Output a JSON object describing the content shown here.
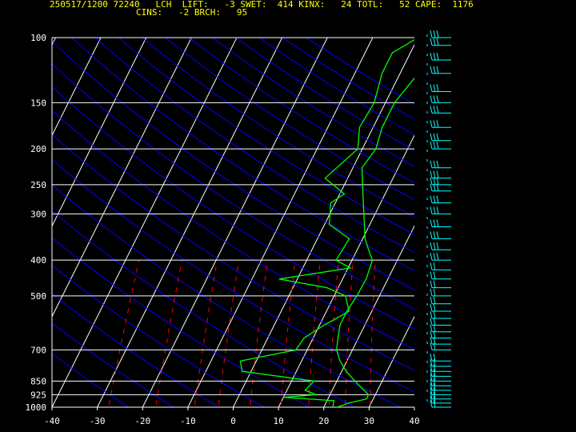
{
  "header": {
    "line1": "250517/1200 72240   LCH  LIFT:   -3 SWET:  414 KINX:   24 TOTL:   52 CAPE:  1176",
    "line2": "CINS:   -2 BRCH:   95"
  },
  "colors": {
    "background": "#000000",
    "isobar": "#ffffff",
    "isotherm": "#ffffff",
    "dry_adiabat": "#0000ff",
    "mixing_ratio": "#ff0000",
    "profile": "#00ff00",
    "wind_barb": "#00ffff",
    "header_text": "#ffff00"
  },
  "chart_data": {
    "type": "skew-t log-p sounding",
    "station": "72240",
    "pressure_levels": [
      100,
      150,
      200,
      250,
      300,
      400,
      500,
      700,
      850,
      925,
      1000
    ],
    "pressure_labels": [
      "100",
      "150",
      "200",
      "250",
      "300",
      "400",
      "500",
      "700",
      "850",
      "925",
      "1000"
    ],
    "temperature_ticks": [
      -40,
      -30,
      -20,
      -10,
      0,
      10,
      20,
      30,
      40
    ],
    "temperature_labels": [
      "-40",
      "-30",
      "-20",
      "-10",
      "0",
      "10",
      "20",
      "30",
      "40"
    ],
    "xlim": [
      -40,
      40
    ],
    "ylim": [
      1000,
      100
    ],
    "temperature_profile": [
      {
        "p": 1000,
        "t": 23.0
      },
      {
        "p": 975,
        "t": 25.0
      },
      {
        "p": 950,
        "t": 28.5
      },
      {
        "p": 925,
        "t": 28.5
      },
      {
        "p": 900,
        "t": 27.0
      },
      {
        "p": 850,
        "t": 24.0
      },
      {
        "p": 800,
        "t": 21.0
      },
      {
        "p": 750,
        "t": 18.5
      },
      {
        "p": 700,
        "t": 16.5
      },
      {
        "p": 650,
        "t": 15.5
      },
      {
        "p": 600,
        "t": 14.5
      },
      {
        "p": 550,
        "t": 14.5
      },
      {
        "p": 500,
        "t": 15.0
      },
      {
        "p": 450,
        "t": 15.2
      },
      {
        "p": 400,
        "t": 14.5
      },
      {
        "p": 375,
        "t": 12.5
      },
      {
        "p": 350,
        "t": 10.5
      },
      {
        "p": 300,
        "t": 7.5
      },
      {
        "p": 250,
        "t": 4.0
      },
      {
        "p": 225,
        "t": 2.0
      },
      {
        "p": 200,
        "t": 3.0
      },
      {
        "p": 175,
        "t": 2.0
      },
      {
        "p": 150,
        "t": 2.0
      },
      {
        "p": 125,
        "t": 4.0
      },
      {
        "p": 110,
        "t": 6.0
      },
      {
        "p": 100,
        "t": 8.5
      }
    ],
    "dewpoint_profile": [
      {
        "p": 1000,
        "t": 22.0
      },
      {
        "p": 960,
        "t": 21.5
      },
      {
        "p": 940,
        "t": 10.0
      },
      {
        "p": 925,
        "t": 17.0
      },
      {
        "p": 900,
        "t": 14.0
      },
      {
        "p": 850,
        "t": 15.0
      },
      {
        "p": 800,
        "t": -2.0
      },
      {
        "p": 750,
        "t": -3.5
      },
      {
        "p": 700,
        "t": 7.5
      },
      {
        "p": 650,
        "t": 8.0
      },
      {
        "p": 600,
        "t": 11.0
      },
      {
        "p": 550,
        "t": 15.0
      },
      {
        "p": 500,
        "t": 12.5
      },
      {
        "p": 475,
        "t": 7.5
      },
      {
        "p": 450,
        "t": -4.0
      },
      {
        "p": 420,
        "t": 10.5
      },
      {
        "p": 400,
        "t": 6.5
      },
      {
        "p": 350,
        "t": 7.0
      },
      {
        "p": 320,
        "t": 1.0
      },
      {
        "p": 280,
        "t": -1.0
      },
      {
        "p": 265,
        "t": 1.0
      },
      {
        "p": 240,
        "t": -5.0
      },
      {
        "p": 200,
        "t": -1.0
      },
      {
        "p": 175,
        "t": -3.0
      },
      {
        "p": 150,
        "t": -2.5
      },
      {
        "p": 125,
        "t": -4.0
      },
      {
        "p": 110,
        "t": -4.0
      },
      {
        "p": 100,
        "t": 0.0
      }
    ],
    "wind_barb_levels": [
      1000,
      975,
      950,
      925,
      900,
      875,
      850,
      825,
      800,
      775,
      750,
      700,
      675,
      650,
      625,
      600,
      575,
      550,
      525,
      500,
      475,
      450,
      425,
      400,
      375,
      350,
      325,
      300,
      280,
      260,
      250,
      240,
      225,
      200,
      190,
      175,
      160,
      150,
      140,
      125,
      115,
      105,
      100
    ]
  }
}
